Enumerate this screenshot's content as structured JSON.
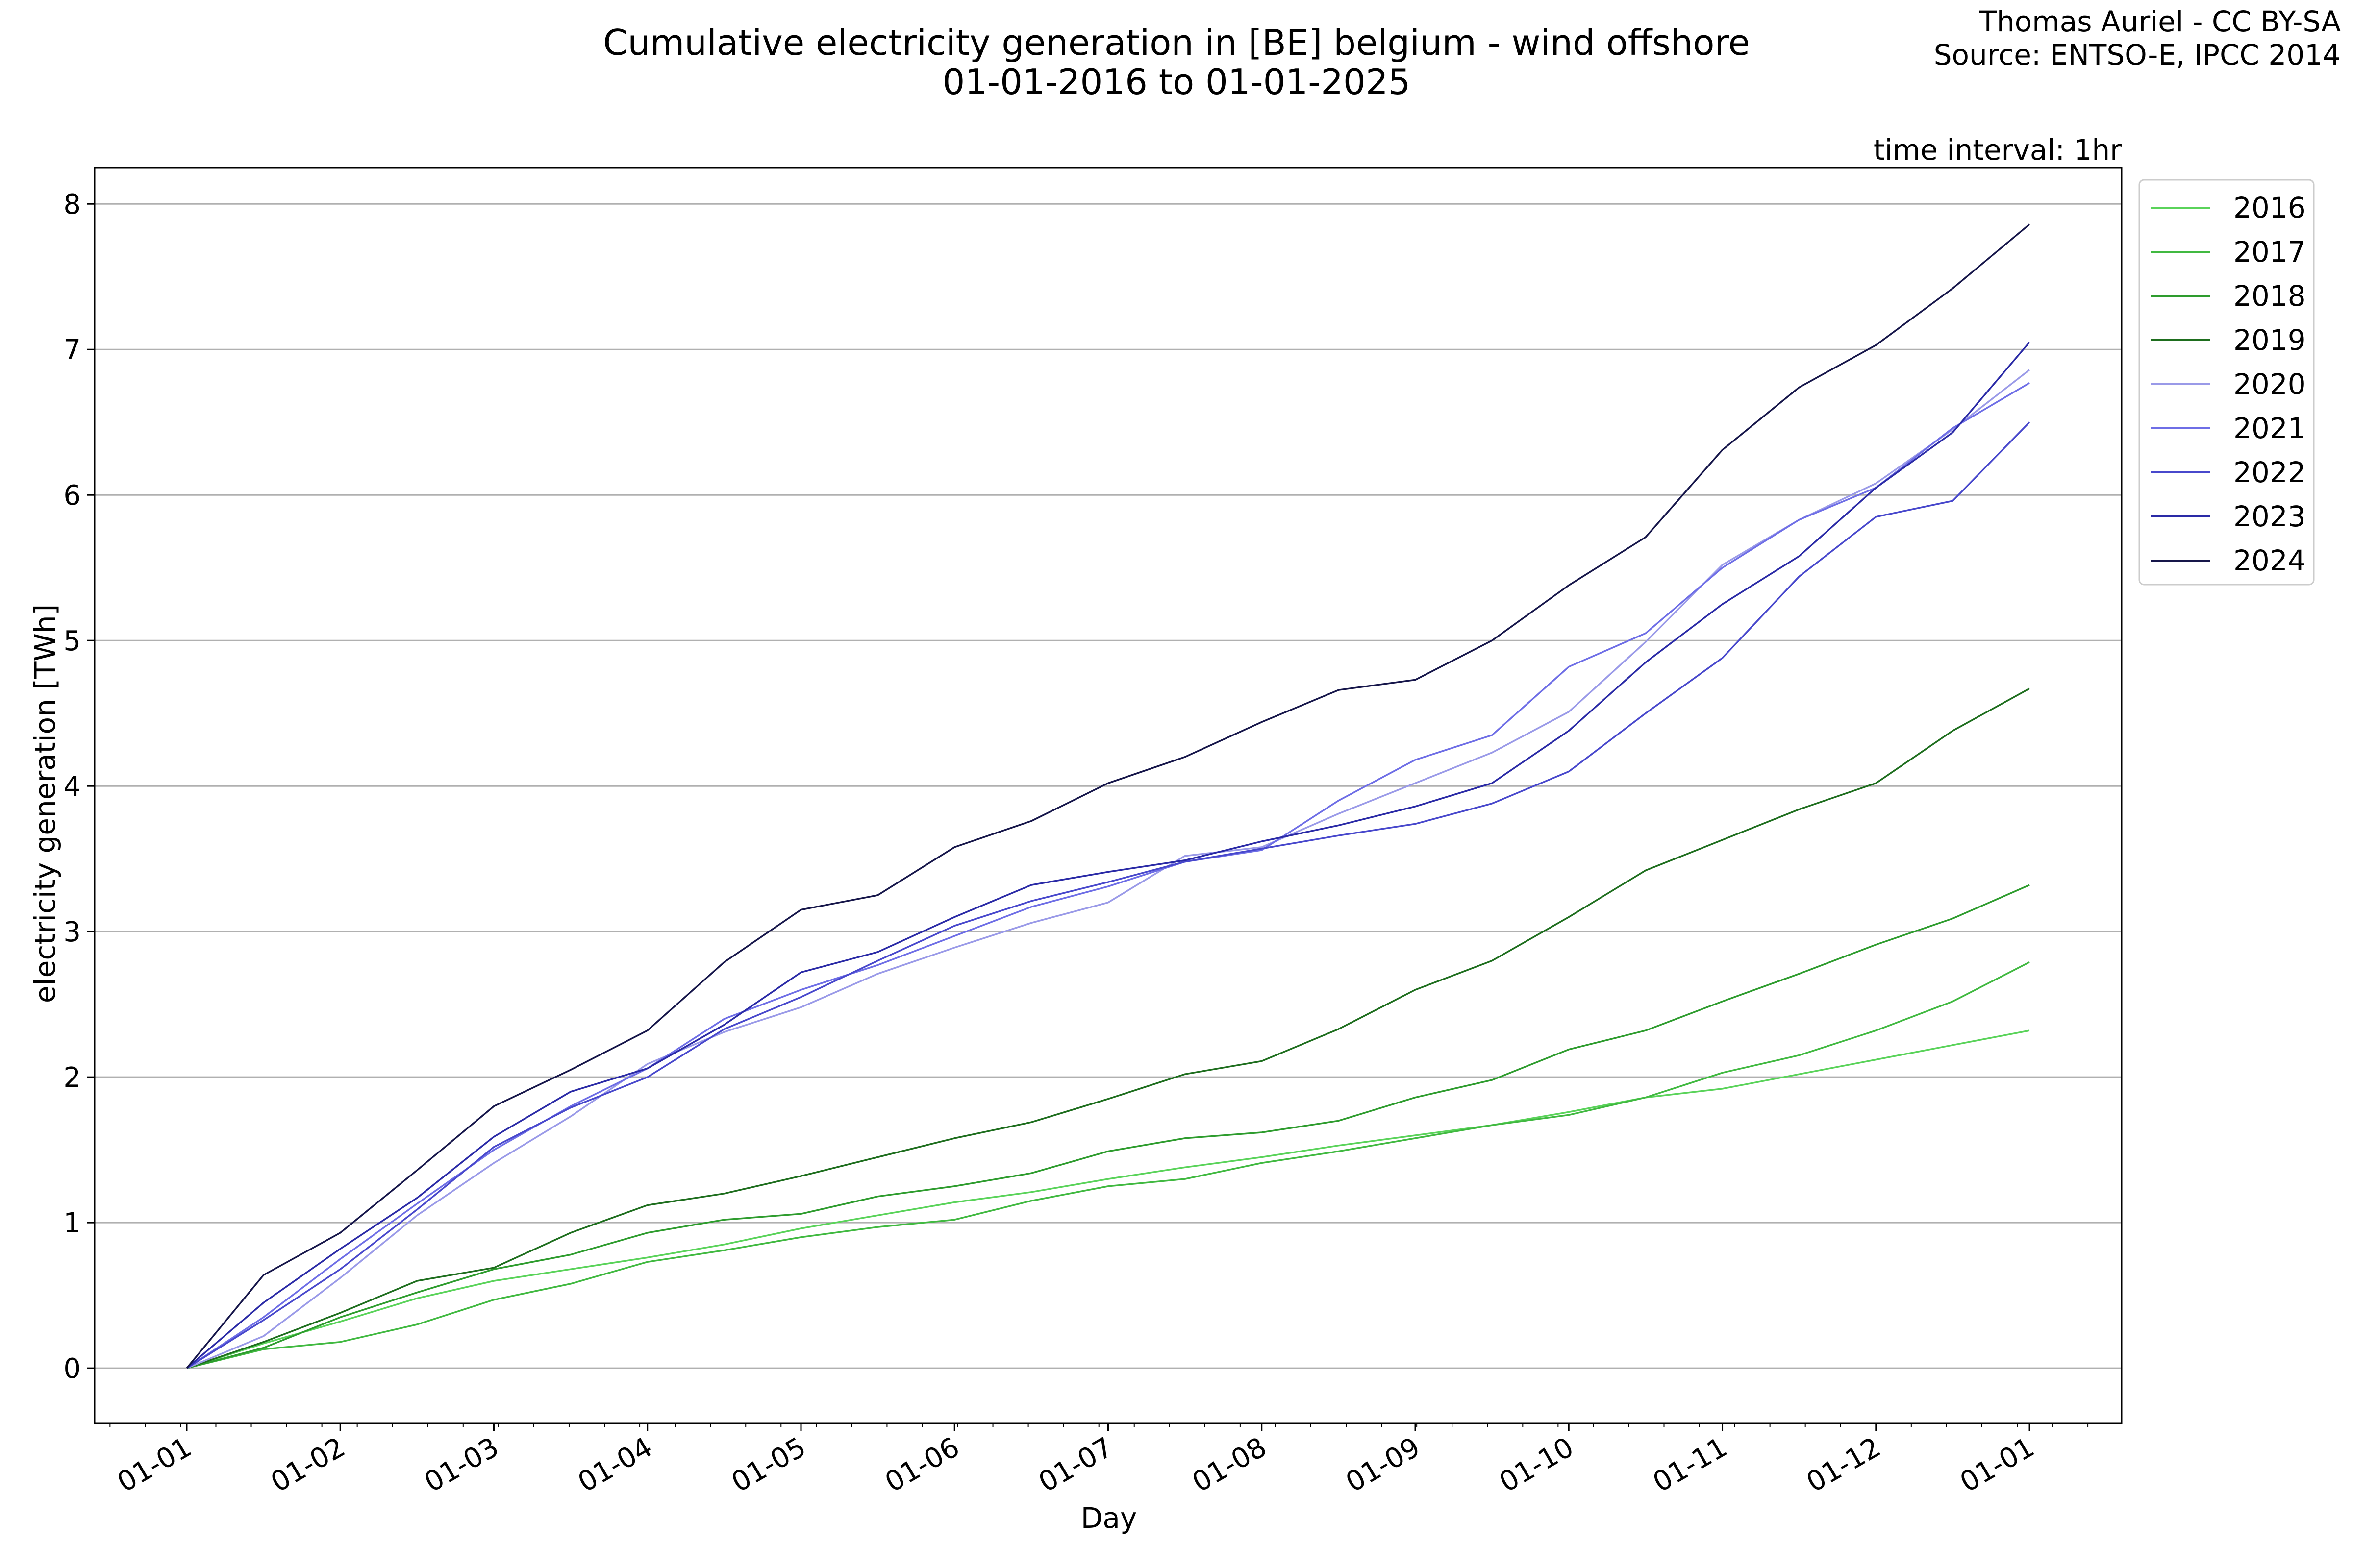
{
  "chart_data": {
    "type": "line",
    "title": "Cumulative electricity generation in [BE] belgium - wind offshore",
    "subtitle": "01-01-2016 to 01-01-2025",
    "credit": "Thomas Auriel - CC BY-SA",
    "source": "Source: ENTSO-E, IPCC 2014",
    "annotation": "time interval: 1hr",
    "xlabel": "Day",
    "ylabel": "electricity generation [TWh]",
    "x_unit": "month",
    "xlim": [
      -0.6,
      12.6
    ],
    "ylim": [
      -0.38,
      8.25
    ],
    "x_ticks": [
      0,
      1,
      2,
      3,
      4,
      5,
      6,
      7,
      8,
      9,
      10,
      11,
      12
    ],
    "x_tick_labels": [
      "01-01",
      "01-02",
      "01-03",
      "01-04",
      "01-05",
      "01-06",
      "01-07",
      "01-08",
      "01-09",
      "01-10",
      "01-11",
      "01-12",
      "01-01"
    ],
    "y_ticks": [
      0,
      1,
      2,
      3,
      4,
      5,
      6,
      7,
      8
    ],
    "y_tick_labels": [
      "0",
      "1",
      "2",
      "3",
      "4",
      "5",
      "6",
      "7",
      "8"
    ],
    "grid": "horizontal",
    "legend_position": "outside-right-top",
    "x": [
      0,
      0.5,
      1,
      1.5,
      2,
      2.5,
      3,
      3.5,
      4,
      4.5,
      5,
      5.5,
      6,
      6.5,
      7,
      7.5,
      8,
      8.5,
      9,
      9.5,
      10,
      10.5,
      11,
      11.5,
      12
    ],
    "series": [
      {
        "name": "2016",
        "color": "#5ad35a",
        "values": [
          0,
          0.17,
          0.32,
          0.48,
          0.6,
          0.68,
          0.76,
          0.85,
          0.96,
          1.05,
          1.14,
          1.21,
          1.3,
          1.38,
          1.45,
          1.53,
          1.6,
          1.67,
          1.76,
          1.86,
          1.92,
          2.02,
          2.12,
          2.22,
          2.32
        ]
      },
      {
        "name": "2017",
        "color": "#41b941",
        "values": [
          0,
          0.13,
          0.18,
          0.3,
          0.47,
          0.58,
          0.73,
          0.81,
          0.9,
          0.97,
          1.02,
          1.15,
          1.25,
          1.3,
          1.41,
          1.49,
          1.58,
          1.67,
          1.74,
          1.86,
          2.03,
          2.15,
          2.32,
          2.52,
          2.79
        ]
      },
      {
        "name": "2018",
        "color": "#2e9c2e",
        "values": [
          0,
          0.14,
          0.35,
          0.52,
          0.68,
          0.78,
          0.93,
          1.02,
          1.06,
          1.18,
          1.25,
          1.34,
          1.49,
          1.58,
          1.62,
          1.7,
          1.86,
          1.98,
          2.19,
          2.32,
          2.52,
          2.71,
          2.91,
          3.09,
          3.32
        ]
      },
      {
        "name": "2019",
        "color": "#1e6e1e",
        "values": [
          0,
          0.18,
          0.38,
          0.6,
          0.69,
          0.93,
          1.12,
          1.2,
          1.32,
          1.45,
          1.58,
          1.69,
          1.85,
          2.02,
          2.11,
          2.33,
          2.6,
          2.8,
          3.1,
          3.42,
          3.63,
          3.84,
          4.02,
          4.38,
          4.67
        ]
      },
      {
        "name": "2020",
        "color": "#9a9ae8",
        "values": [
          0,
          0.22,
          0.62,
          1.05,
          1.41,
          1.73,
          2.09,
          2.31,
          2.48,
          2.71,
          2.89,
          3.06,
          3.2,
          3.52,
          3.58,
          3.81,
          4.02,
          4.23,
          4.51,
          4.99,
          5.52,
          5.83,
          6.08,
          6.45,
          6.86
        ]
      },
      {
        "name": "2021",
        "color": "#6e6ee6",
        "values": [
          0,
          0.35,
          0.75,
          1.13,
          1.5,
          1.8,
          2.06,
          2.4,
          2.6,
          2.77,
          2.97,
          3.17,
          3.31,
          3.48,
          3.56,
          3.9,
          4.18,
          4.35,
          4.82,
          5.05,
          5.5,
          5.83,
          6.05,
          6.46,
          6.77
        ]
      },
      {
        "name": "2022",
        "color": "#4848cc",
        "values": [
          0,
          0.33,
          0.68,
          1.09,
          1.52,
          1.79,
          2.0,
          2.33,
          2.55,
          2.8,
          3.04,
          3.21,
          3.34,
          3.48,
          3.57,
          3.66,
          3.74,
          3.88,
          4.1,
          4.5,
          4.88,
          5.44,
          5.85,
          5.96,
          6.5
        ]
      },
      {
        "name": "2023",
        "color": "#2a2aa6",
        "values": [
          0,
          0.45,
          0.82,
          1.17,
          1.59,
          1.9,
          2.06,
          2.36,
          2.72,
          2.86,
          3.1,
          3.32,
          3.41,
          3.49,
          3.62,
          3.73,
          3.86,
          4.02,
          4.38,
          4.85,
          5.25,
          5.58,
          6.05,
          6.43,
          7.05
        ]
      },
      {
        "name": "2024",
        "color": "#16164a",
        "values": [
          0,
          0.64,
          0.93,
          1.36,
          1.8,
          2.05,
          2.32,
          2.79,
          3.15,
          3.25,
          3.58,
          3.76,
          4.02,
          4.2,
          4.44,
          4.66,
          4.73,
          5.0,
          5.38,
          5.71,
          6.31,
          6.74,
          7.03,
          7.42,
          7.86
        ]
      }
    ]
  }
}
